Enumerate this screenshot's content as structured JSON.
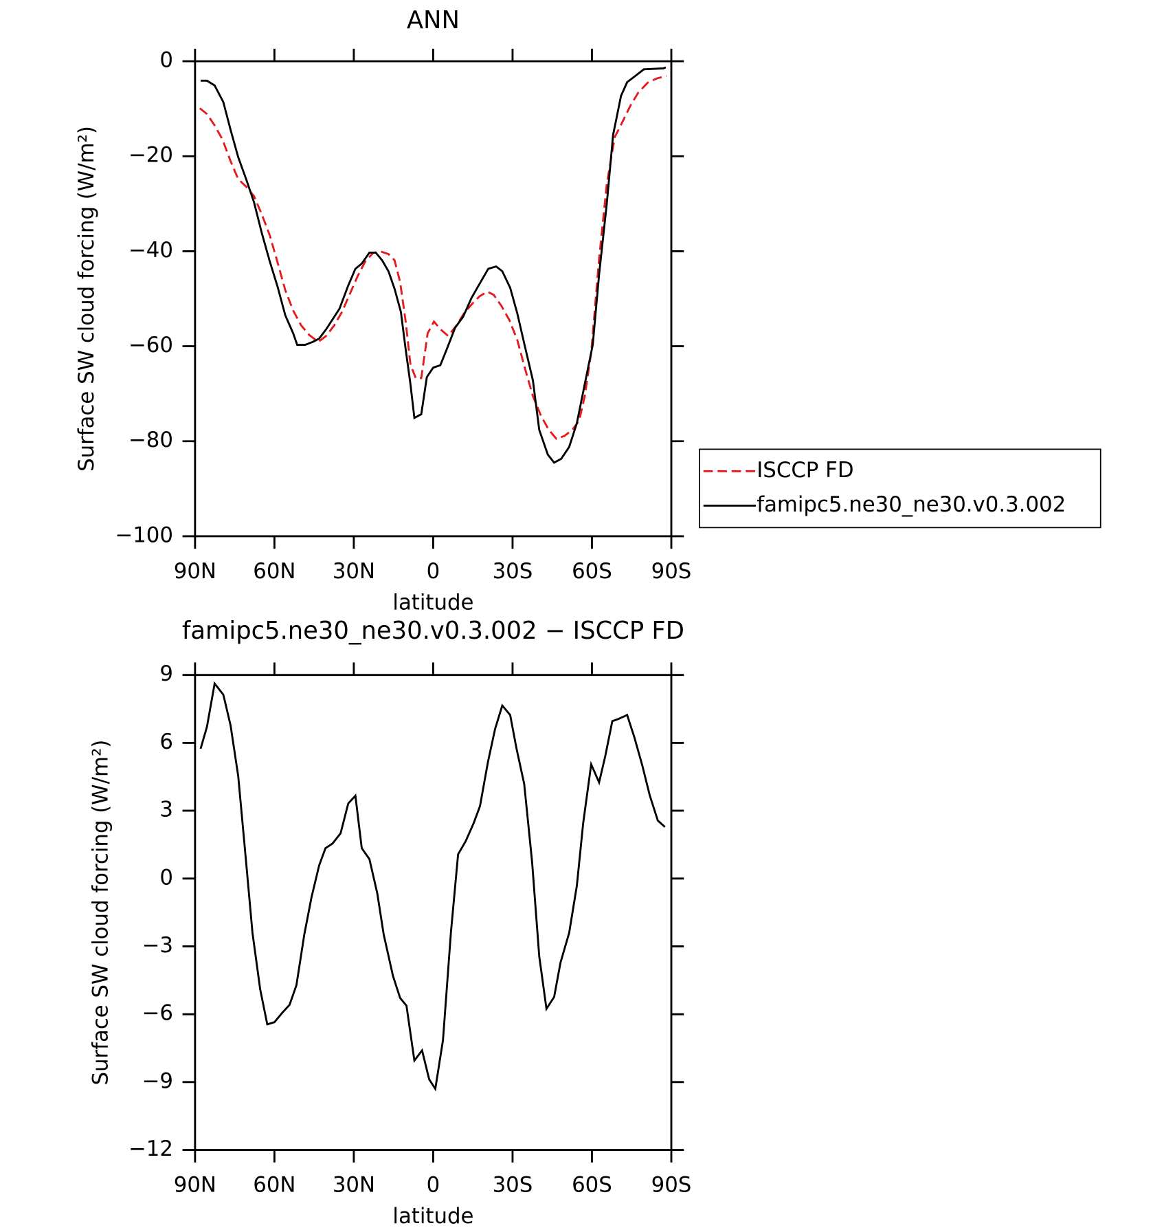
{
  "chart_data": [
    {
      "type": "line",
      "title": "ANN",
      "xlabel": "latitude",
      "ylabel": "Surface SW cloud forcing (W/m²)",
      "xlim": [
        90,
        -90
      ],
      "ylim": [
        -100,
        0
      ],
      "xticks": [
        {
          "value": 90,
          "label": "90N"
        },
        {
          "value": 60,
          "label": "60N"
        },
        {
          "value": 30,
          "label": "30N"
        },
        0,
        {
          "value": -30,
          "label": "30S"
        },
        {
          "value": -60,
          "label": "60S"
        },
        {
          "value": -90,
          "label": "90S"
        }
      ],
      "yticks": [
        {
          "value": -100,
          "label": "−100"
        },
        {
          "value": -80,
          "label": "−80"
        },
        {
          "value": -60,
          "label": "−60"
        },
        {
          "value": -40,
          "label": "−40"
        },
        {
          "value": -20,
          "label": "−20"
        },
        0
      ],
      "legend": "right",
      "series": [
        {
          "name": "ISCCP FD",
          "color": "#e41a1c",
          "dash": true,
          "x": [
            88.2,
            85.5,
            82.6,
            79.6,
            76.6,
            73.7,
            70.7,
            67.7,
            64.8,
            61.8,
            58.8,
            55.9,
            52.9,
            49.9,
            46.9,
            43.4,
            40.4,
            37.4,
            34.5,
            31.5,
            28.5,
            25.6,
            22.6,
            19.6,
            16.9,
            14.6,
            12.5,
            10.4,
            8.6,
            6.5,
            4.5,
            2.1,
            -0.3,
            -2.7,
            -5.6,
            -8.6,
            -11.6,
            -14.5,
            -17.5,
            -20.5,
            -22.9,
            -25.8,
            -28.8,
            -31.8,
            -34.7,
            -37.7,
            -40.7,
            -43.7,
            -46.6,
            -49.6,
            -52.6,
            -55.2,
            -57.3,
            -59.7,
            -62.7,
            -65.6,
            -68.6,
            -71.6,
            -74.5,
            -77.5,
            -81.1,
            -84.6,
            -88.2
          ],
          "values": [
            -9.9,
            -11.1,
            -13.5,
            -16.5,
            -21.0,
            -24.8,
            -26.4,
            -28.4,
            -32.2,
            -36.6,
            -42.4,
            -48.2,
            -52.5,
            -55.6,
            -57.6,
            -59.1,
            -57.8,
            -55.6,
            -52.8,
            -49.0,
            -45.2,
            -42.1,
            -40.3,
            -40.1,
            -40.6,
            -41.9,
            -46.5,
            -54.8,
            -63.9,
            -66.8,
            -66.7,
            -57.3,
            -54.8,
            -56.4,
            -57.8,
            -55.8,
            -53.1,
            -51.2,
            -49.5,
            -48.5,
            -49.2,
            -51.5,
            -54.5,
            -58.7,
            -64.7,
            -70.5,
            -74.6,
            -77.6,
            -79.5,
            -78.9,
            -77.6,
            -75.6,
            -70.5,
            -61.4,
            -41.6,
            -25.9,
            -16.0,
            -12.7,
            -9.4,
            -6.6,
            -4.5,
            -3.6,
            -3.1
          ]
        },
        {
          "name": "famipc5.ne30_ne30.v0.3.002",
          "color": "#000000",
          "dash": false,
          "x": [
            87.9,
            85.5,
            82.6,
            79.3,
            76.6,
            73.7,
            70.7,
            67.7,
            64.8,
            61.8,
            58.8,
            55.9,
            52.9,
            51.4,
            48.4,
            45.5,
            43.1,
            40.4,
            37.4,
            35.4,
            32.1,
            29.4,
            27.0,
            24.1,
            21.7,
            19.3,
            16.9,
            14.6,
            12.2,
            10.4,
            8.6,
            7.1,
            4.5,
            2.4,
            0.0,
            -2.7,
            -5.3,
            -8.3,
            -11.3,
            -14.5,
            -17.5,
            -20.8,
            -23.8,
            -26.1,
            -29.1,
            -31.8,
            -34.4,
            -37.7,
            -40.1,
            -43.3,
            -45.7,
            -48.4,
            -51.4,
            -54.3,
            -56.7,
            -60.3,
            -62.7,
            -65.6,
            -68.0,
            -71.0,
            -73.3,
            -76.6,
            -79.6,
            -87.0,
            -87.9
          ],
          "values": [
            -4.1,
            -4.1,
            -5.1,
            -8.6,
            -14.4,
            -20.2,
            -24.8,
            -29.7,
            -36.1,
            -42.1,
            -47.5,
            -53.5,
            -57.3,
            -59.7,
            -59.7,
            -59.1,
            -58.4,
            -56.4,
            -53.8,
            -52.1,
            -47.2,
            -43.7,
            -42.6,
            -40.3,
            -40.3,
            -41.9,
            -44.2,
            -47.9,
            -52.8,
            -60.7,
            -68.0,
            -75.1,
            -74.3,
            -66.5,
            -64.5,
            -64.0,
            -60.4,
            -56.1,
            -53.8,
            -49.8,
            -46.9,
            -43.7,
            -43.2,
            -44.2,
            -47.7,
            -53.1,
            -59.4,
            -67.2,
            -77.6,
            -82.8,
            -84.5,
            -83.7,
            -81.2,
            -76.2,
            -69.6,
            -59.7,
            -44.9,
            -30.0,
            -15.5,
            -7.3,
            -4.4,
            -3.0,
            -1.7,
            -1.5,
            -1.3
          ]
        }
      ]
    },
    {
      "type": "line",
      "title": "famipc5.ne30_ne30.v0.3.002 − ISCCP FD",
      "xlabel": "latitude",
      "ylabel": "Surface SW cloud forcing (W/m²)",
      "xlim": [
        90,
        -90
      ],
      "ylim": [
        -12,
        9
      ],
      "xticks": [
        {
          "value": 90,
          "label": "90N"
        },
        {
          "value": 60,
          "label": "60N"
        },
        {
          "value": 30,
          "label": "30N"
        },
        0,
        {
          "value": -30,
          "label": "30S"
        },
        {
          "value": -60,
          "label": "60S"
        },
        {
          "value": -90,
          "label": "90S"
        }
      ],
      "yticks": [
        {
          "value": -12,
          "label": "−12"
        },
        {
          "value": -9,
          "label": "−9"
        },
        {
          "value": -6,
          "label": "−6"
        },
        {
          "value": -3,
          "label": "−3"
        },
        0,
        3,
        6,
        9
      ],
      "series": [
        {
          "color": "#000000",
          "dash": false,
          "x": [
            87.9,
            85.5,
            82.6,
            79.3,
            76.6,
            73.7,
            70.7,
            68.3,
            65.4,
            62.7,
            60.0,
            57.0,
            54.3,
            51.7,
            48.7,
            46.0,
            43.1,
            40.7,
            38.0,
            35.0,
            32.1,
            29.4,
            27.0,
            24.1,
            21.1,
            18.7,
            15.2,
            12.5,
            10.1,
            7.1,
            4.2,
            1.5,
            -0.8,
            -3.7,
            -6.7,
            -9.4,
            -12.3,
            -15.3,
            -17.7,
            -20.7,
            -23.4,
            -26.1,
            -29.1,
            -31.5,
            -34.4,
            -37.4,
            -40.1,
            -42.8,
            -45.7,
            -48.1,
            -51.4,
            -54.3,
            -56.7,
            -59.7,
            -62.7,
            -65.0,
            -67.7,
            -70.1,
            -73.3,
            -76.0,
            -79.0,
            -81.9,
            -84.9,
            -87.6
          ],
          "values": [
            5.74,
            6.71,
            8.62,
            8.13,
            6.78,
            4.53,
            0.72,
            -2.4,
            -4.89,
            -6.45,
            -6.35,
            -5.93,
            -5.59,
            -4.72,
            -2.47,
            -0.84,
            0.58,
            1.34,
            1.55,
            2.0,
            3.32,
            3.66,
            1.34,
            0.86,
            -0.67,
            -2.47,
            -4.31,
            -5.28,
            -5.62,
            -8.05,
            -7.6,
            -8.88,
            -9.3,
            -7.15,
            -2.4,
            1.07,
            1.65,
            2.45,
            3.21,
            5.15,
            6.61,
            7.65,
            7.23,
            5.74,
            4.18,
            0.72,
            -3.44,
            -5.76,
            -5.24,
            -3.72,
            -2.4,
            -0.32,
            2.45,
            5.05,
            4.25,
            5.4,
            6.96,
            7.06,
            7.23,
            6.26,
            5.02,
            3.66,
            2.56,
            2.28
          ]
        }
      ]
    }
  ]
}
